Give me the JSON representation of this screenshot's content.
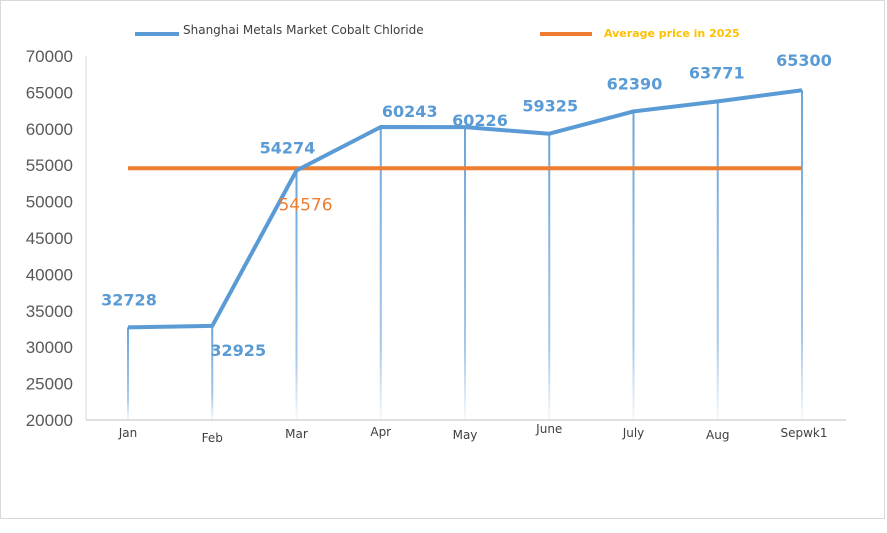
{
  "chart_data": {
    "type": "line",
    "categories": [
      "Jan",
      "Feb",
      "Mar",
      "Apr",
      "May",
      "June",
      "July",
      "Aug",
      "Sepwk1"
    ],
    "series": [
      {
        "name": "Shanghai Metals Market Cobalt Chloride",
        "values": [
          32728,
          32925,
          54274,
          60243,
          60226,
          59325,
          62390,
          63771,
          65300
        ],
        "labels": [
          "32728",
          "32925",
          "54274",
          "60243",
          "60226",
          "59325",
          "62390",
          "63771",
          "65300"
        ],
        "color": "#5b9bd5"
      },
      {
        "name": "Average price in 2025",
        "values": [
          54576,
          54576,
          54576,
          54576,
          54576,
          54576,
          54576,
          54576,
          54576
        ],
        "label": "54576",
        "color": "#ed7d31"
      }
    ],
    "ylim": [
      20000,
      70000
    ],
    "yticks": [
      "20000",
      "25000",
      "30000",
      "35000",
      "40000",
      "45000",
      "50000",
      "55000",
      "60000",
      "65000",
      "70000"
    ],
    "drop_lines": true,
    "legend_position": "top",
    "grid": false
  }
}
